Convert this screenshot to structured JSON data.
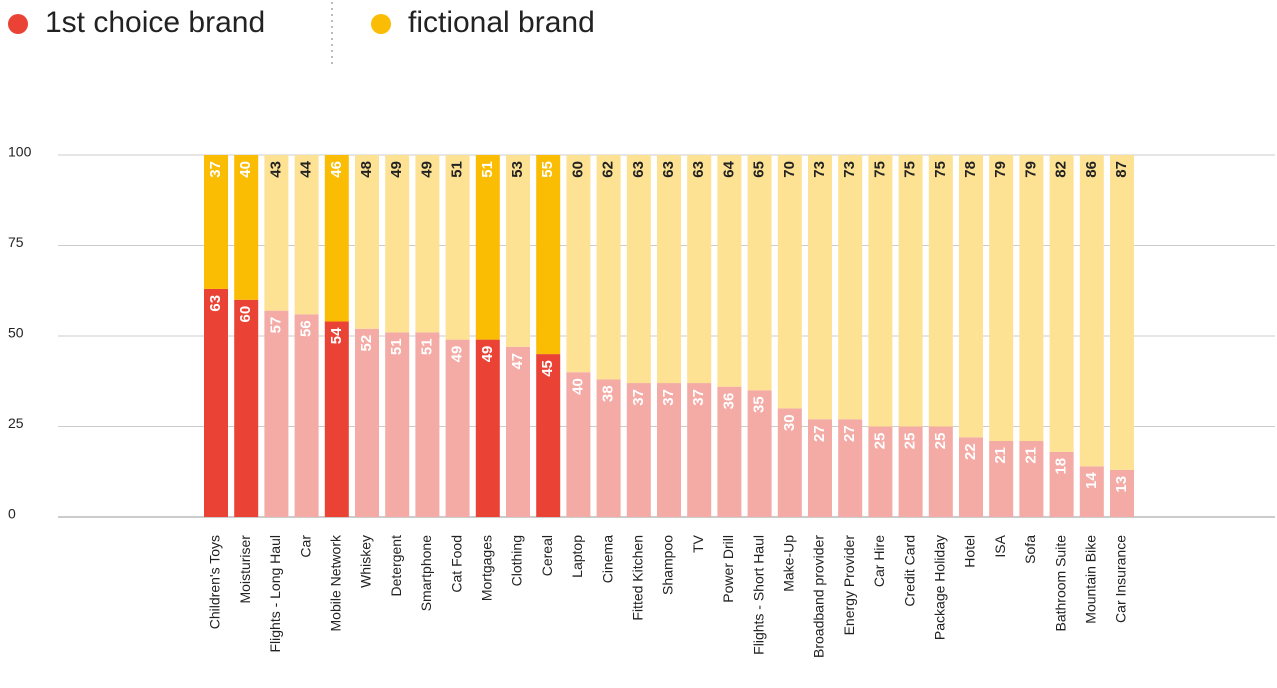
{
  "chart_data": {
    "type": "stacked-bar",
    "categories": [
      "Children's Toys",
      "Moisturiser",
      "Flights - Long Haul",
      "Car",
      "Mobile Network",
      "Whiskey",
      "Detergent",
      "Smartphone",
      "Cat Food",
      "Mortgages",
      "Clothing",
      "Cereal",
      "Laptop",
      "Cinema",
      "Fitted Kitchen",
      "Shampoo",
      "TV",
      "Power Drill",
      "Flights - Short Haul",
      "Make-Up",
      "Broadband provider",
      "Energy Provider",
      "Car Hire",
      "Credit Card",
      "Package Holiday",
      "Hotel",
      "ISA",
      "Sofa",
      "Bathroom Suite",
      "Mountain Bike",
      "Car Insurance"
    ],
    "series": [
      {
        "name": "1st choice brand",
        "color": "#ea4335",
        "values": [
          63,
          60,
          57,
          56,
          54,
          52,
          51,
          51,
          49,
          49,
          47,
          45,
          40,
          38,
          37,
          37,
          37,
          36,
          35,
          30,
          27,
          27,
          25,
          25,
          25,
          22,
          21,
          21,
          18,
          14,
          13
        ],
        "colors": [
          "#ea4335",
          "#ea4335",
          "#f4aaa5",
          "#f4aaa5",
          "#ea4335",
          "#f4aaa5",
          "#f4aaa5",
          "#f4aaa5",
          "#f4aaa5",
          "#ea4335",
          "#f4aaa5",
          "#ea4335",
          "#f4aaa5",
          "#f4aaa5",
          "#f4aaa5",
          "#f4aaa5",
          "#f4aaa5",
          "#f4aaa5",
          "#f4aaa5",
          "#f4aaa5",
          "#f4aaa5",
          "#f4aaa5",
          "#f4aaa5",
          "#f4aaa5",
          "#f4aaa5",
          "#f4aaa5",
          "#f4aaa5",
          "#f4aaa5",
          "#f4aaa5",
          "#f4aaa5",
          "#f4aaa5"
        ]
      },
      {
        "name": "fictional brand",
        "color": "#fbbc04",
        "values": [
          37,
          40,
          43,
          44,
          46,
          48,
          49,
          49,
          51,
          51,
          53,
          55,
          60,
          62,
          63,
          63,
          63,
          64,
          65,
          70,
          73,
          73,
          75,
          75,
          75,
          78,
          79,
          79,
          82,
          86,
          87
        ],
        "colors": [
          "#fbbc04",
          "#fbbc04",
          "#fde293",
          "#fde293",
          "#fbbc04",
          "#fde293",
          "#fde293",
          "#fde293",
          "#fde293",
          "#fbbc04",
          "#fde293",
          "#fbbc04",
          "#fde293",
          "#fde293",
          "#fde293",
          "#fde293",
          "#fde293",
          "#fde293",
          "#fde293",
          "#fde293",
          "#fde293",
          "#fde293",
          "#fde293",
          "#fde293",
          "#fde293",
          "#fde293",
          "#fde293",
          "#fde293",
          "#fde293",
          "#fde293",
          "#fde293"
        ]
      }
    ],
    "ylim": [
      0,
      100
    ],
    "yticks": [
      0,
      25,
      50,
      75,
      100
    ],
    "grid": true,
    "legend": "top-left"
  }
}
